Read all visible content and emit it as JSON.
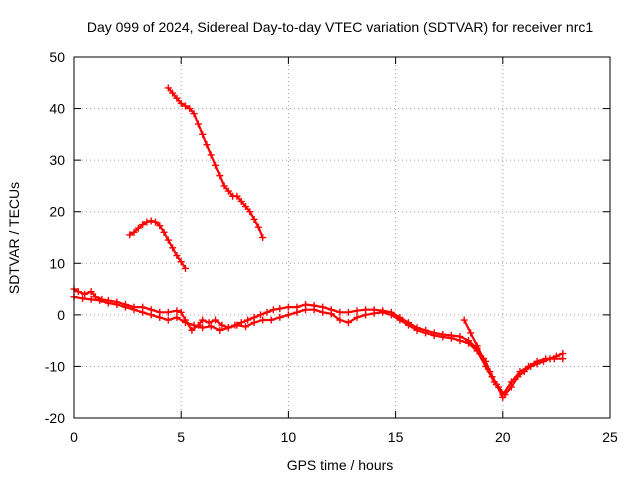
{
  "chart_data": {
    "type": "scatter",
    "title": "Day 099 of 2024, Sidereal Day-to-day VTEC variation (SDTVAR) for receiver nrc1",
    "xlabel": "GPS time / hours",
    "ylabel": "SDTVAR / TECUs",
    "xlim": [
      0,
      25
    ],
    "ylim": [
      -20,
      50
    ],
    "xticks": [
      0,
      5,
      10,
      15,
      20,
      25
    ],
    "yticks": [
      -20,
      -10,
      0,
      10,
      20,
      30,
      40,
      50
    ],
    "grid": true,
    "marker": "+",
    "color": "#ff0000",
    "series": [
      {
        "name": "main",
        "x": [
          0,
          0.2,
          0.5,
          0.8,
          1.0,
          1.3,
          1.6,
          2.0,
          2.4,
          2.8,
          3.2,
          3.6,
          4.0,
          4.4,
          4.8,
          5.0,
          5.2,
          5.5,
          5.8,
          6.0,
          6.3,
          6.6,
          6.9,
          7.2,
          7.5,
          7.8,
          8.1,
          8.4,
          8.7,
          9.0,
          9.3,
          9.6,
          10.0,
          10.4,
          10.8,
          11.2,
          11.6,
          12.0,
          12.4,
          12.8,
          13.2,
          13.6,
          14.0,
          14.4,
          14.8,
          15.2,
          15.6,
          16.0,
          16.4,
          16.8,
          17.2,
          17.6,
          18.0,
          18.4,
          18.8,
          19.2,
          19.5,
          19.8,
          20.1,
          20.4,
          20.7,
          21.0,
          21.3,
          21.6,
          21.9,
          22.2,
          22.5,
          22.8
        ],
        "y": [
          5,
          4.5,
          4,
          4.5,
          3.5,
          3,
          2.8,
          2.5,
          2,
          1.5,
          1.5,
          1,
          0.5,
          0.5,
          0.8,
          0.5,
          -1,
          -3,
          -2,
          -1,
          -1.5,
          -1,
          -2,
          -2.5,
          -2,
          -1.5,
          -1,
          -0.5,
          0,
          0.5,
          1,
          1.2,
          1.5,
          1.5,
          2,
          1.8,
          1.5,
          1,
          0.5,
          0.5,
          0.8,
          1,
          1,
          0.8,
          0.5,
          -0.5,
          -1.5,
          -2.5,
          -3,
          -3.5,
          -3.8,
          -4,
          -4.2,
          -5,
          -6.5,
          -9,
          -12,
          -14,
          -15.5,
          -14,
          -12,
          -11,
          -10,
          -9.5,
          -9,
          -8.5,
          -8,
          -7.5
        ]
      },
      {
        "name": "main-lower",
        "x": [
          0,
          0.4,
          0.8,
          1.2,
          1.6,
          2.0,
          2.4,
          2.8,
          3.2,
          3.6,
          4.0,
          4.4,
          4.8,
          5.2,
          5.6,
          6.0,
          6.4,
          6.8,
          7.2,
          7.6,
          8.0,
          8.4,
          8.8,
          9.2,
          9.6,
          10.0,
          10.4,
          10.8,
          11.2,
          11.6,
          12.0,
          12.4,
          12.8,
          13.2,
          13.6,
          14.0,
          14.4,
          14.8,
          15.2,
          15.6,
          16.0,
          16.4,
          16.8,
          17.2,
          17.6,
          18.0,
          18.4,
          18.8,
          19.2,
          19.6,
          20.0,
          20.4,
          20.8,
          21.2,
          21.6,
          22.0,
          22.4,
          22.8
        ],
        "y": [
          3.5,
          3.2,
          3,
          2.8,
          2.3,
          2,
          1.5,
          1,
          0.5,
          0,
          -0.5,
          -1,
          -0.5,
          -1.5,
          -2,
          -2.5,
          -2.2,
          -3,
          -2.5,
          -2,
          -2.3,
          -1.5,
          -1,
          -1,
          -0.5,
          0,
          0.5,
          1,
          1,
          0.5,
          0.2,
          -1,
          -1.5,
          -0.5,
          0,
          0.3,
          0.5,
          0,
          -1,
          -2,
          -3,
          -3.5,
          -4,
          -4.3,
          -4.5,
          -5,
          -5.5,
          -7,
          -10,
          -13,
          -15.5,
          -13,
          -11,
          -10,
          -9,
          -8.5,
          -8.5,
          -8.5
        ]
      },
      {
        "name": "tail-18h",
        "x": [
          18.2,
          18.5,
          18.8,
          19.1,
          19.4,
          19.7,
          20.0
        ],
        "y": [
          -1,
          -3.5,
          -6,
          -8.5,
          -11,
          -13.5,
          -16
        ]
      },
      {
        "name": "arc-upper",
        "x": [
          4.4,
          4.6,
          4.8,
          5.0,
          5.2,
          5.4,
          5.6,
          5.8,
          6.0,
          6.2,
          6.4,
          6.6,
          6.8,
          7.0,
          7.2,
          7.4,
          7.6,
          7.8,
          8.0,
          8.2,
          8.4,
          8.6,
          8.8
        ],
        "y": [
          44,
          43,
          42,
          41,
          40.5,
          40,
          39,
          37,
          35,
          33,
          31,
          29,
          27,
          25,
          24,
          23,
          23,
          22,
          21,
          20,
          18.5,
          17,
          15
        ]
      },
      {
        "name": "arc-lower",
        "x": [
          2.6,
          2.8,
          3.0,
          3.2,
          3.4,
          3.6,
          3.8,
          4.0,
          4.2,
          4.4,
          4.6,
          4.8,
          5.0,
          5.2
        ],
        "y": [
          15.5,
          16,
          16.8,
          17.5,
          18,
          18.2,
          18,
          17.3,
          16,
          14.5,
          13,
          11.5,
          10.3,
          9
        ]
      }
    ]
  }
}
